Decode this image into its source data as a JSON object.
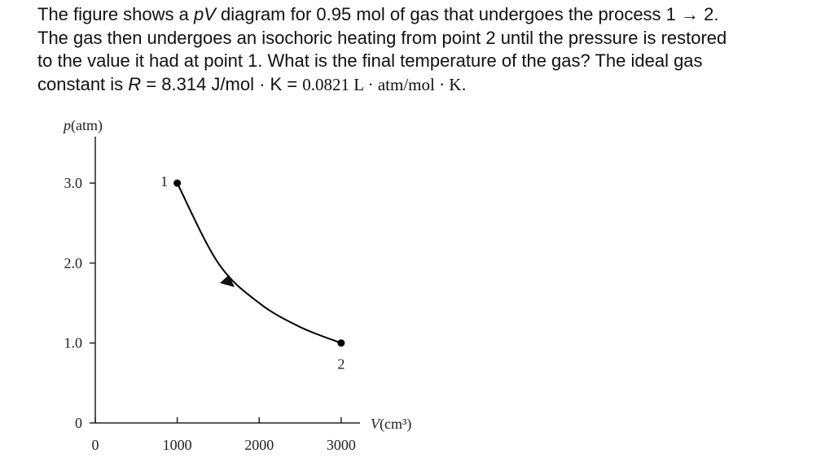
{
  "problem": {
    "parts": [
      "The figure shows a ",
      "pV",
      " diagram for  0.95 mol of gas that undergoes the process 1 → 2.",
      "The gas then undergoes an isochoric heating from point 2 until the pressure is restored",
      "to the value it had at point 1. What is the final temperature of the gas? The ideal gas",
      "constant is ",
      "R",
      " = 8.314 J/mol · K = ",
      "0.0821 L · atm/mol · K",
      "."
    ]
  },
  "chart_data": {
    "type": "line",
    "ylabel": {
      "symbol": "p",
      "unit": "(atm)"
    },
    "xlabel": {
      "symbol": "V",
      "unit": "(cm³)"
    },
    "x": [
      1000,
      1500,
      2000,
      2500,
      3000
    ],
    "values": [
      3.0,
      2.0,
      1.5,
      1.2,
      1.0
    ],
    "point_labels": [
      "1",
      null,
      null,
      null,
      "2"
    ],
    "color": "#000000",
    "xlim": [
      0,
      3230
    ],
    "ylim": [
      0,
      3.5
    ],
    "xticks": [
      0,
      1000,
      2000,
      3000
    ],
    "yticks": [
      0,
      {
        "value": 1,
        "label": "1.0"
      },
      {
        "value": 2,
        "label": "2.0"
      },
      {
        "value": 3,
        "label": "3.0"
      }
    ]
  }
}
